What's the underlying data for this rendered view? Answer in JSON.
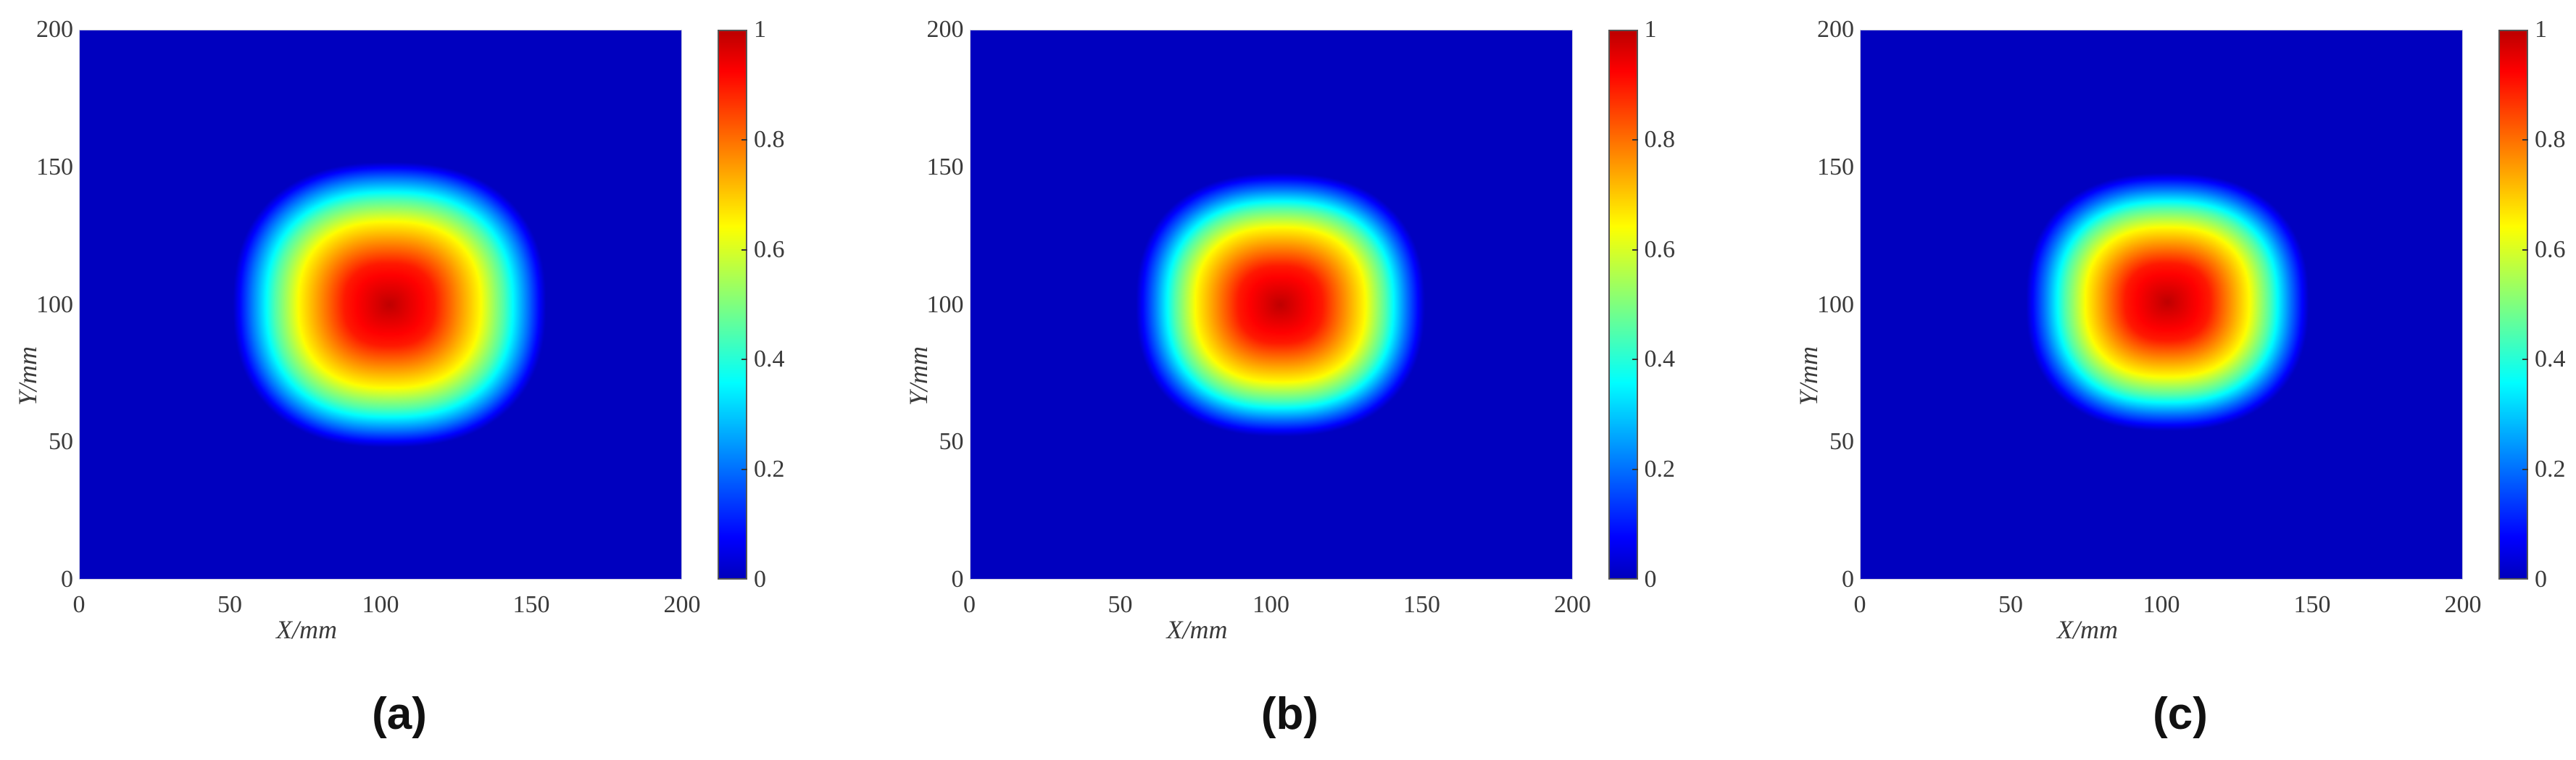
{
  "chart_data": [
    {
      "type": "heatmap",
      "caption": "(a)",
      "xlabel": "X/mm",
      "ylabel": "Y/mm",
      "xlim": [
        0,
        200
      ],
      "ylim": [
        0,
        200
      ],
      "xticks": [
        "0",
        "50",
        "100",
        "150",
        "200"
      ],
      "yticks": [
        "0",
        "50",
        "100",
        "150",
        "200"
      ],
      "colormap": "jet",
      "clim": [
        0,
        1
      ],
      "colorbar_ticks": [
        "0",
        "0.2",
        "0.4",
        "0.6",
        "0.8",
        "1"
      ],
      "background_value": 0,
      "peak": {
        "x": 103,
        "y": 100,
        "value": 1
      },
      "extent_radius_mm": 52,
      "radial_profile": {
        "r_mm": [
          0,
          15,
          30,
          38,
          46,
          52
        ],
        "value": [
          1,
          0.9,
          0.65,
          0.45,
          0.2,
          0
        ]
      }
    },
    {
      "type": "heatmap",
      "caption": "(b)",
      "xlabel": "X/mm",
      "ylabel": "Y/mm",
      "xlim": [
        0,
        200
      ],
      "ylim": [
        0,
        200
      ],
      "xticks": [
        "0",
        "50",
        "100",
        "150",
        "200"
      ],
      "yticks": [
        "0",
        "50",
        "100",
        "150",
        "200"
      ],
      "colormap": "jet",
      "clim": [
        0,
        1
      ],
      "colorbar_ticks": [
        "0",
        "0.2",
        "0.4",
        "0.6",
        "0.8",
        "1"
      ],
      "background_value": 0,
      "peak": {
        "x": 103,
        "y": 100,
        "value": 1
      },
      "extent_radius_mm": 48,
      "radial_profile": {
        "r_mm": [
          0,
          14,
          28,
          35,
          42,
          48
        ],
        "value": [
          1,
          0.9,
          0.65,
          0.45,
          0.2,
          0
        ]
      }
    },
    {
      "type": "heatmap",
      "caption": "(c)",
      "xlabel": "X/mm",
      "ylabel": "Y/mm",
      "xlim": [
        0,
        200
      ],
      "ylim": [
        0,
        200
      ],
      "xticks": [
        "0",
        "50",
        "100",
        "150",
        "200"
      ],
      "yticks": [
        "0",
        "50",
        "100",
        "150",
        "200"
      ],
      "colormap": "jet",
      "clim": [
        0,
        1
      ],
      "colorbar_ticks": [
        "0",
        "0.2",
        "0.4",
        "0.6",
        "0.8",
        "1"
      ],
      "background_value": 0,
      "peak": {
        "x": 102,
        "y": 101,
        "value": 1
      },
      "extent_radius_mm": 47,
      "radial_profile": {
        "r_mm": [
          0,
          14,
          27,
          34,
          41,
          47
        ],
        "value": [
          1,
          0.9,
          0.65,
          0.45,
          0.2,
          0
        ]
      }
    }
  ]
}
